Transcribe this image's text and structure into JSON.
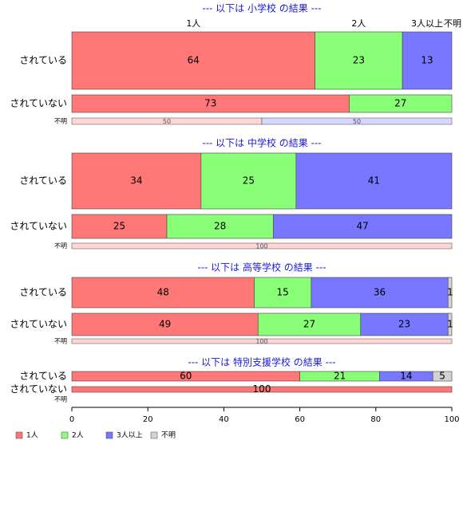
{
  "chart_data": {
    "type": "bar",
    "orientation": "horizontal-stacked-percent",
    "categories": [
      "1人",
      "2人",
      "3人以上",
      "不明"
    ],
    "colors": [
      "#ff7777",
      "#88ff77",
      "#7777ff",
      "#d3d3d3"
    ],
    "xlim": [
      0,
      100
    ],
    "xticks": [
      0,
      20,
      40,
      60,
      80,
      100
    ],
    "legend_position": "bottom-left",
    "groups": [
      {
        "title": "--- 以下は 小学校 の結果 ---",
        "rows": [
          {
            "label": "されている",
            "values": [
              64,
              23,
              13,
              0
            ]
          },
          {
            "label": "されていない",
            "values": [
              73,
              27,
              0,
              0
            ]
          },
          {
            "label": "不明",
            "values": [
              50,
              0,
              50,
              0
            ]
          }
        ]
      },
      {
        "title": "--- 以下は 中学校 の結果 ---",
        "rows": [
          {
            "label": "されている",
            "values": [
              34,
              25,
              41,
              0
            ]
          },
          {
            "label": "されていない",
            "values": [
              25,
              28,
              47,
              0
            ]
          },
          {
            "label": "不明",
            "values": [
              100,
              0,
              0,
              0
            ]
          }
        ]
      },
      {
        "title": "--- 以下は 高等学校 の結果 ---",
        "rows": [
          {
            "label": "されている",
            "values": [
              48,
              15,
              36,
              1
            ]
          },
          {
            "label": "されていない",
            "values": [
              49,
              27,
              23,
              1
            ]
          },
          {
            "label": "不明",
            "values": [
              100,
              0,
              0,
              0
            ]
          }
        ]
      },
      {
        "title": "--- 以下は 特別支援学校 の結果 ---",
        "rows": [
          {
            "label": "されている",
            "values": [
              60,
              21,
              14,
              5
            ]
          },
          {
            "label": "されていない",
            "values": [
              100,
              0,
              0,
              0
            ]
          },
          {
            "label": "不明",
            "values": [
              0,
              0,
              0,
              0
            ]
          }
        ]
      }
    ]
  }
}
